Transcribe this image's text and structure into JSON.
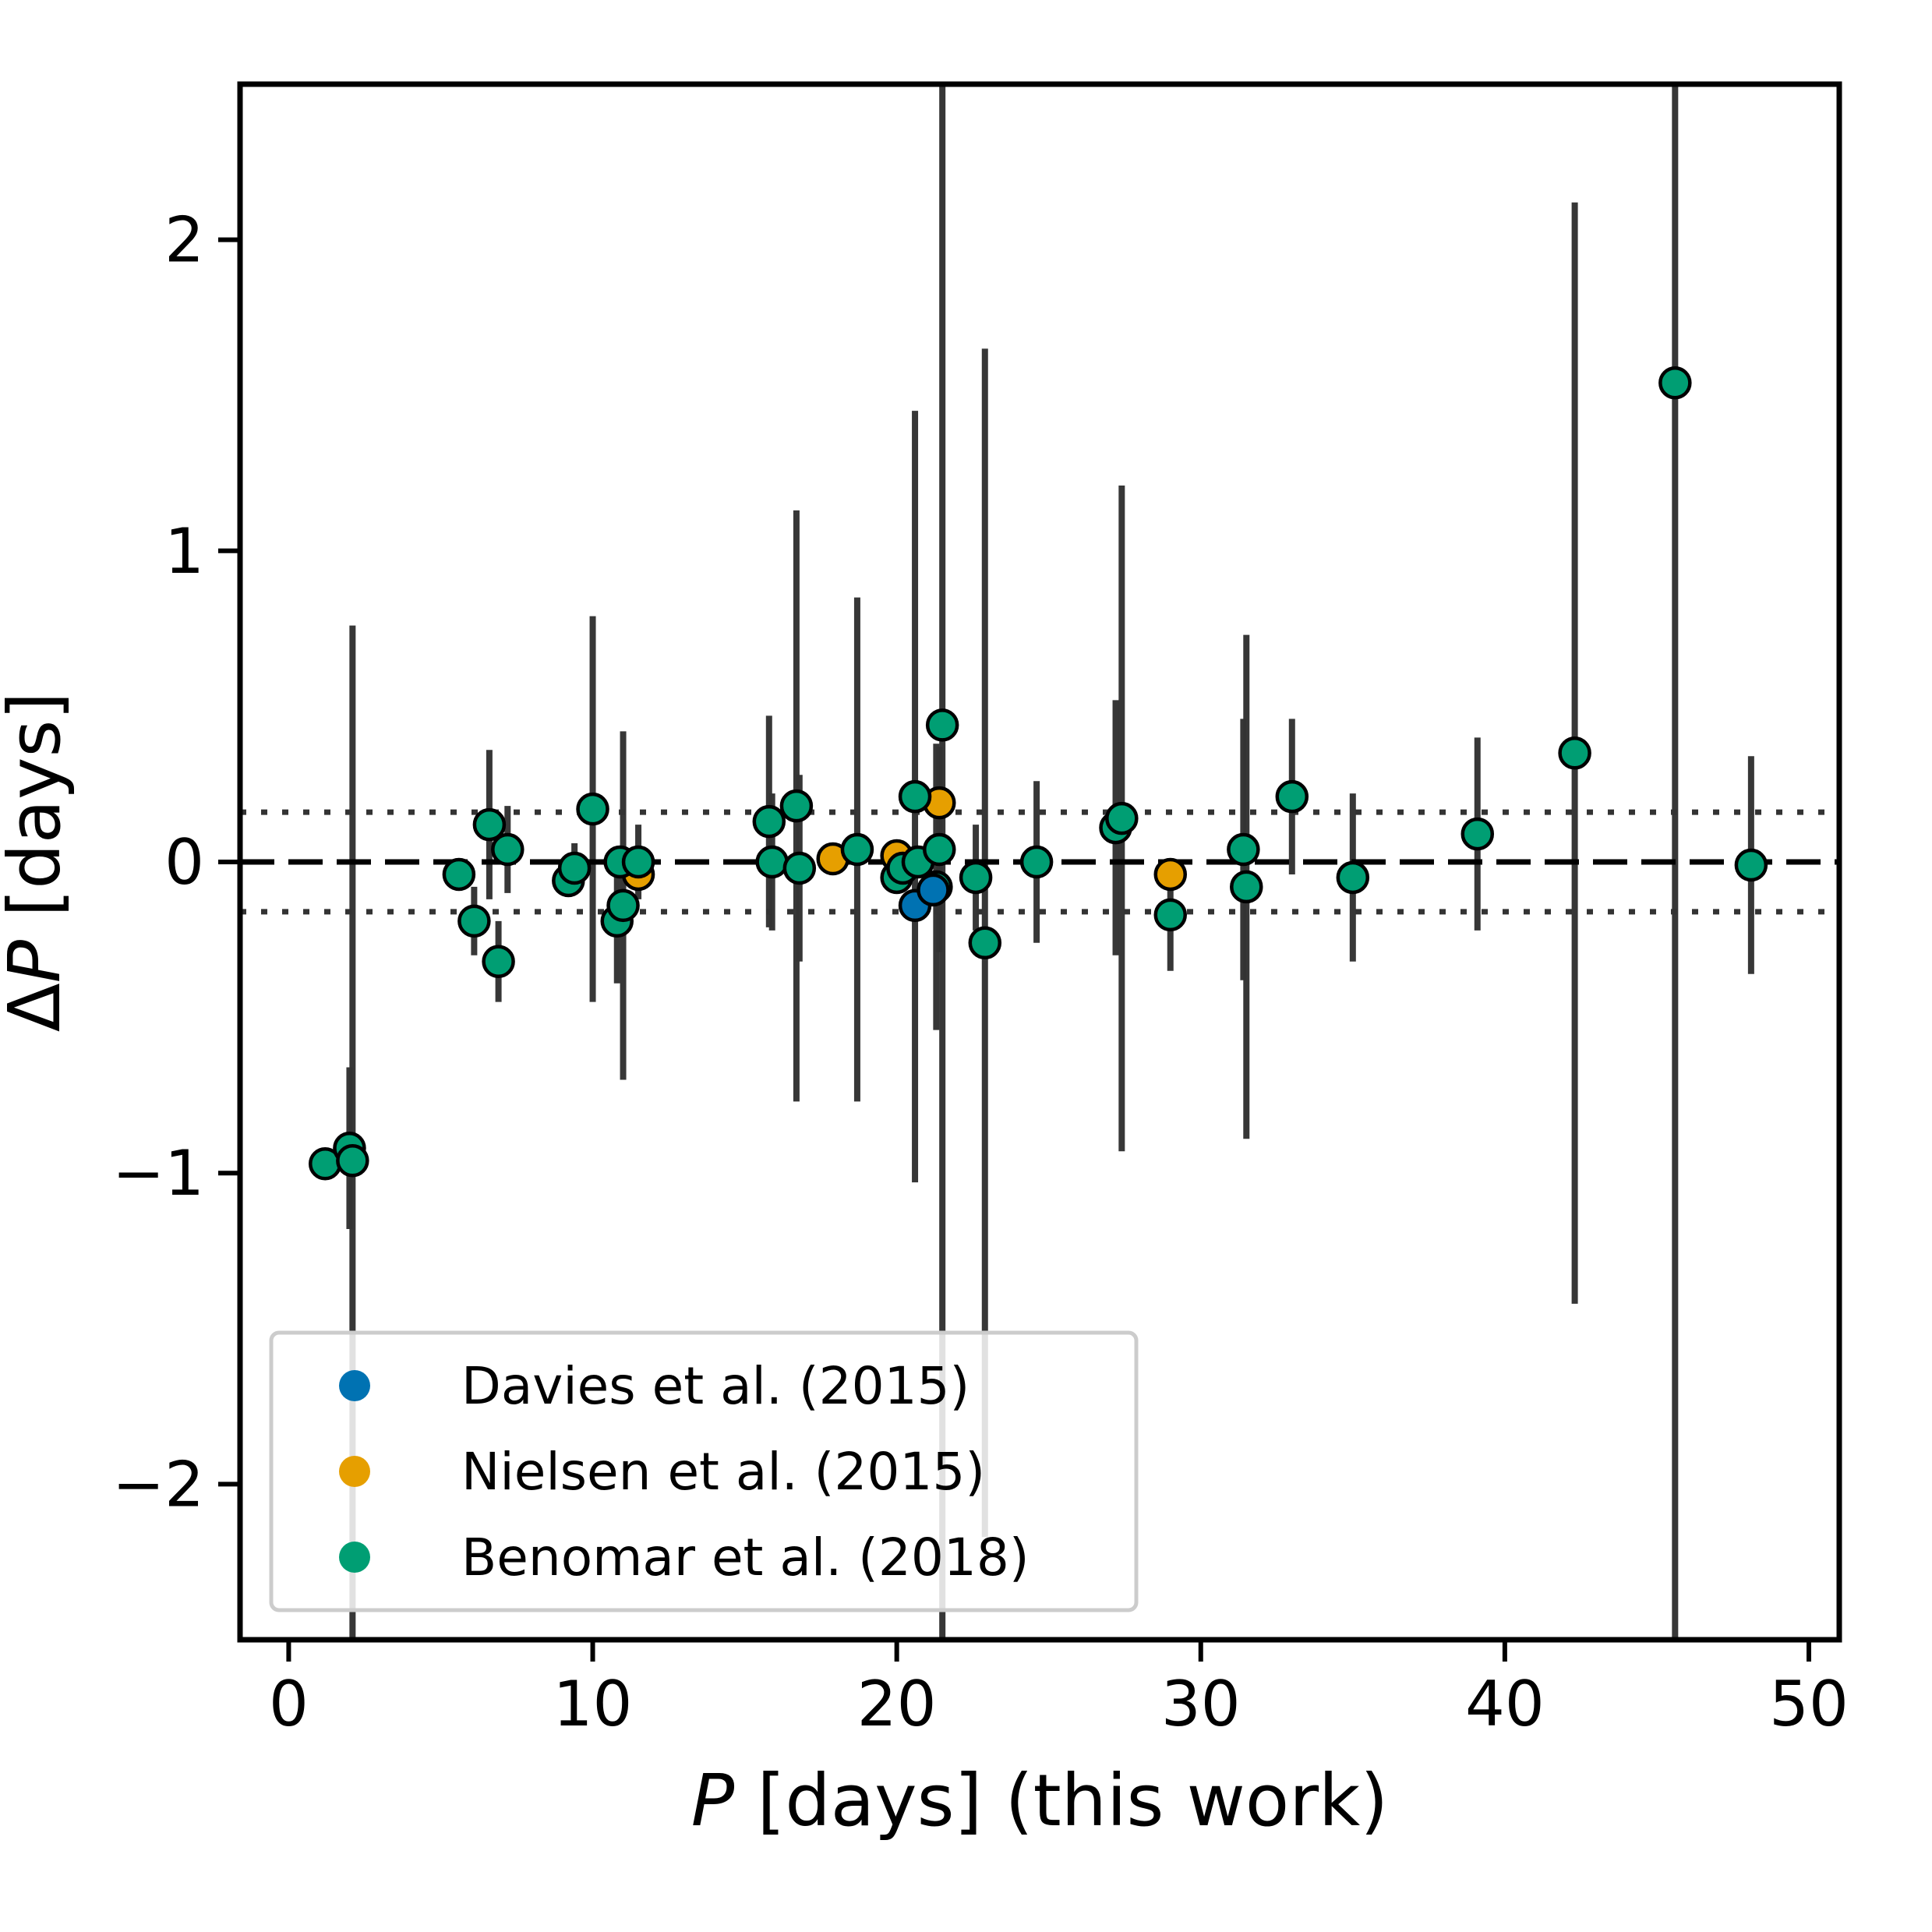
{
  "chart_data": {
    "type": "scatter",
    "xlabel": {
      "var": "P",
      "rest": " [days] (this work)"
    },
    "ylabel": {
      "var": "P",
      "prefix": "Δ",
      "rest": " [days]"
    },
    "xlim": [
      -1.6,
      51
    ],
    "ylim": [
      -2.5,
      2.5
    ],
    "xticks": [
      0,
      10,
      20,
      30,
      40,
      50
    ],
    "xtick_labels": [
      "0",
      "10",
      "20",
      "30",
      "40",
      "50"
    ],
    "yticks": [
      -2,
      -1,
      0,
      1,
      2
    ],
    "ytick_labels": [
      "−2",
      "−1",
      "0",
      "1",
      "2"
    ],
    "reference_lines": [
      {
        "y": 0,
        "style": "dashed"
      },
      {
        "y": 0.16,
        "style": "dotted"
      },
      {
        "y": -0.16,
        "style": "dotted"
      }
    ],
    "legend_position": "lower-left",
    "errorbar_color": "#333333",
    "series": [
      {
        "name": "Davies et al. (2015)",
        "color": "#0072b2",
        "points": [
          {
            "x": 20.6,
            "y": -0.14,
            "err": 0.0
          },
          {
            "x": 21.2,
            "y": -0.09,
            "err": 0.0
          }
        ]
      },
      {
        "name": "Nielsen et al. (2015)",
        "color": "#e69f00",
        "points": [
          {
            "x": 11.5,
            "y": -0.04,
            "err": 0.0
          },
          {
            "x": 17.9,
            "y": 0.01,
            "err": 0.0
          },
          {
            "x": 20.0,
            "y": 0.02,
            "err": 0.0
          },
          {
            "x": 21.4,
            "y": 0.19,
            "err": 0.0
          },
          {
            "x": 29.0,
            "y": -0.04,
            "err": 0.0
          }
        ]
      },
      {
        "name": "Benomar et al. (2018)",
        "color": "#009e73",
        "points": [
          {
            "x": 1.2,
            "y": -0.97,
            "err": 0.0
          },
          {
            "x": 2.0,
            "y": -0.92,
            "err": 0.26
          },
          {
            "x": 2.1,
            "y": -0.96,
            "err": 1.72
          },
          {
            "x": 5.6,
            "y": -0.04,
            "err": 0.0
          },
          {
            "x": 6.1,
            "y": -0.19,
            "err": 0.11
          },
          {
            "x": 6.6,
            "y": 0.12,
            "err": 0.24
          },
          {
            "x": 6.9,
            "y": -0.32,
            "err": 0.13
          },
          {
            "x": 7.2,
            "y": 0.04,
            "err": 0.14
          },
          {
            "x": 9.2,
            "y": -0.06,
            "err": 0.0
          },
          {
            "x": 9.4,
            "y": -0.02,
            "err": 0.08
          },
          {
            "x": 10.0,
            "y": 0.17,
            "err": 0.62
          },
          {
            "x": 10.8,
            "y": -0.19,
            "err": 0.2
          },
          {
            "x": 10.9,
            "y": 0.0,
            "err": 0.03
          },
          {
            "x": 11.0,
            "y": -0.14,
            "err": 0.56
          },
          {
            "x": 11.5,
            "y": 0.0,
            "err": 0.12
          },
          {
            "x": 15.8,
            "y": 0.13,
            "err": 0.34
          },
          {
            "x": 15.9,
            "y": 0.0,
            "err": 0.22
          },
          {
            "x": 16.7,
            "y": 0.18,
            "err": 0.95
          },
          {
            "x": 16.8,
            "y": -0.02,
            "err": 0.3
          },
          {
            "x": 18.7,
            "y": 0.04,
            "err": 0.81
          },
          {
            "x": 20.0,
            "y": -0.05,
            "err": 0.0
          },
          {
            "x": 20.2,
            "y": -0.02,
            "err": 0.0
          },
          {
            "x": 20.6,
            "y": 0.21,
            "err": 1.24
          },
          {
            "x": 20.7,
            "y": 0.0,
            "err": 0.0
          },
          {
            "x": 21.3,
            "y": -0.08,
            "err": 0.46
          },
          {
            "x": 21.4,
            "y": 0.04,
            "err": 0.33
          },
          {
            "x": 21.5,
            "y": 0.44,
            "err": 4.0
          },
          {
            "x": 22.6,
            "y": -0.05,
            "err": 0.17
          },
          {
            "x": 22.9,
            "y": -0.26,
            "err": 1.91
          },
          {
            "x": 24.6,
            "y": 0.0,
            "err": 0.26
          },
          {
            "x": 27.2,
            "y": 0.11,
            "err": 0.41
          },
          {
            "x": 27.4,
            "y": 0.14,
            "err": 1.07
          },
          {
            "x": 29.0,
            "y": -0.17,
            "err": 0.18
          },
          {
            "x": 31.4,
            "y": 0.04,
            "err": 0.42
          },
          {
            "x": 31.5,
            "y": -0.08,
            "err": 0.81
          },
          {
            "x": 33.0,
            "y": 0.21,
            "err": 0.25
          },
          {
            "x": 35.0,
            "y": -0.05,
            "err": 0.27
          },
          {
            "x": 39.1,
            "y": 0.09,
            "err": 0.31
          },
          {
            "x": 42.3,
            "y": 0.35,
            "err": 1.77
          },
          {
            "x": 45.6,
            "y": 1.54,
            "err": 4.2
          },
          {
            "x": 48.1,
            "y": -0.01,
            "err": 0.35
          }
        ]
      }
    ]
  }
}
